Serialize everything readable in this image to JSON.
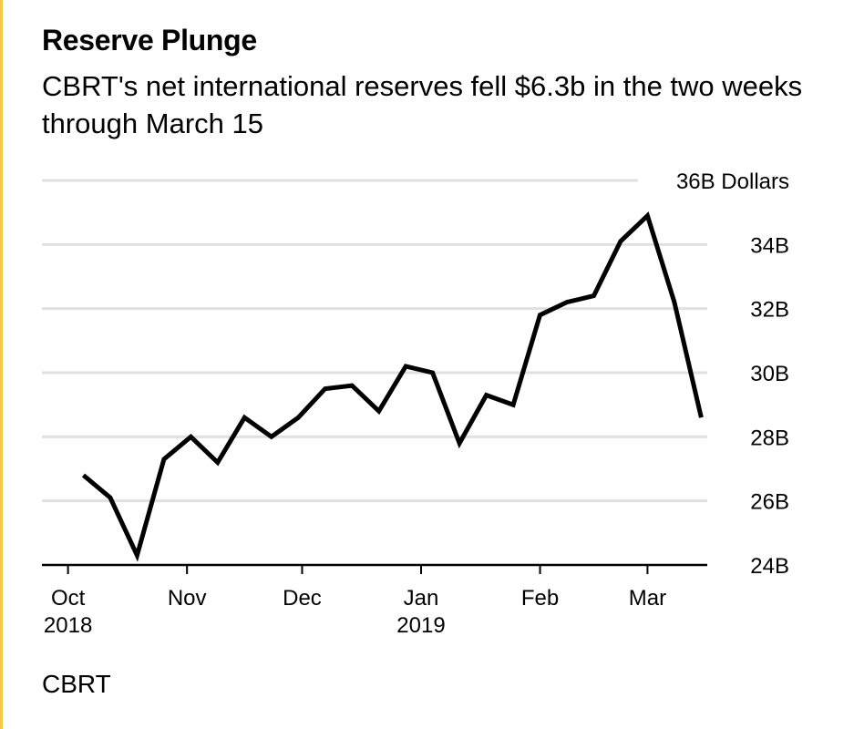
{
  "header": {
    "title": "Reserve Plunge",
    "subtitle": "CBRT's net international reserves fell $6.3b in the two weeks through March 15"
  },
  "footer": {
    "source": "CBRT"
  },
  "colors": {
    "line": "#000000",
    "grid": "#e0e0e0",
    "axis": "#000000",
    "accent_bar": "#f2c94c"
  },
  "chart_data": {
    "type": "line",
    "title": "Reserve Plunge",
    "subtitle": "CBRT's net international reserves fell $6.3b in the two weeks through March 15",
    "unit": "Dollars",
    "ylim": [
      24,
      36
    ],
    "yticks": [
      {
        "value": 36,
        "label": "36B Dollars"
      },
      {
        "value": 34,
        "label": "34B"
      },
      {
        "value": 32,
        "label": "32B"
      },
      {
        "value": 30,
        "label": "30B"
      },
      {
        "value": 28,
        "label": "28B"
      },
      {
        "value": 26,
        "label": "26B"
      },
      {
        "value": 24,
        "label": "24B"
      }
    ],
    "xlim": [
      "2018-09-28",
      "2019-03-18"
    ],
    "xticks": [
      {
        "date": "2018-10-01",
        "label": "Oct",
        "label2": "2018"
      },
      {
        "date": "2018-11-01",
        "label": "Nov",
        "label2": ""
      },
      {
        "date": "2018-12-01",
        "label": "Dec",
        "label2": ""
      },
      {
        "date": "2019-01-01",
        "label": "Jan",
        "label2": "2019"
      },
      {
        "date": "2019-02-01",
        "label": "Feb",
        "label2": ""
      },
      {
        "date": "2019-03-01",
        "label": "Mar",
        "label2": ""
      }
    ],
    "grid": true,
    "legend": "none",
    "series": [
      {
        "values": [
          {
            "x": "2018-10-05",
            "y": 26.8
          },
          {
            "x": "2018-10-12",
            "y": 26.1
          },
          {
            "x": "2018-10-19",
            "y": 24.3
          },
          {
            "x": "2018-10-26",
            "y": 27.3
          },
          {
            "x": "2018-11-02",
            "y": 28.0
          },
          {
            "x": "2018-11-09",
            "y": 27.2
          },
          {
            "x": "2018-11-16",
            "y": 28.6
          },
          {
            "x": "2018-11-23",
            "y": 28.0
          },
          {
            "x": "2018-11-30",
            "y": 28.6
          },
          {
            "x": "2018-12-07",
            "y": 29.5
          },
          {
            "x": "2018-12-14",
            "y": 29.6
          },
          {
            "x": "2018-12-21",
            "y": 28.8
          },
          {
            "x": "2018-12-28",
            "y": 30.2
          },
          {
            "x": "2019-01-04",
            "y": 30.0
          },
          {
            "x": "2019-01-11",
            "y": 27.8
          },
          {
            "x": "2019-01-18",
            "y": 29.3
          },
          {
            "x": "2019-01-25",
            "y": 29.0
          },
          {
            "x": "2019-02-01",
            "y": 31.8
          },
          {
            "x": "2019-02-08",
            "y": 32.2
          },
          {
            "x": "2019-02-15",
            "y": 32.4
          },
          {
            "x": "2019-02-22",
            "y": 34.1
          },
          {
            "x": "2019-03-01",
            "y": 34.9
          },
          {
            "x": "2019-03-08",
            "y": 32.2
          },
          {
            "x": "2019-03-15",
            "y": 28.6
          }
        ]
      }
    ]
  }
}
